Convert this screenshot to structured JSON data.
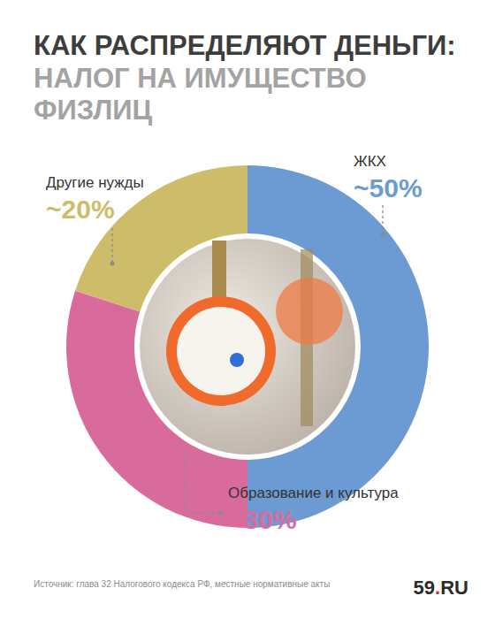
{
  "chart_data": {
    "type": "pie",
    "title": "КАК РАСПРЕДЕЛЯЮТ ДЕНЬГИ:",
    "subtitle": "НАЛОГ НА ИМУЩЕСТВО ФИЗЛИЦ",
    "categories": [
      "ЖКХ",
      "Образование и культура",
      "Другие нужды"
    ],
    "values": [
      50,
      30,
      20
    ],
    "value_labels": [
      "~50%",
      "~30%",
      "~20%"
    ],
    "colors": [
      "#6b9bd2",
      "#d96b9c",
      "#cdbd6b"
    ],
    "data_labels": true,
    "annotations": [
      "Источник: глава 32 Налогового кодекса РФ, местные нормативные акты",
      "59.RU"
    ]
  }
}
